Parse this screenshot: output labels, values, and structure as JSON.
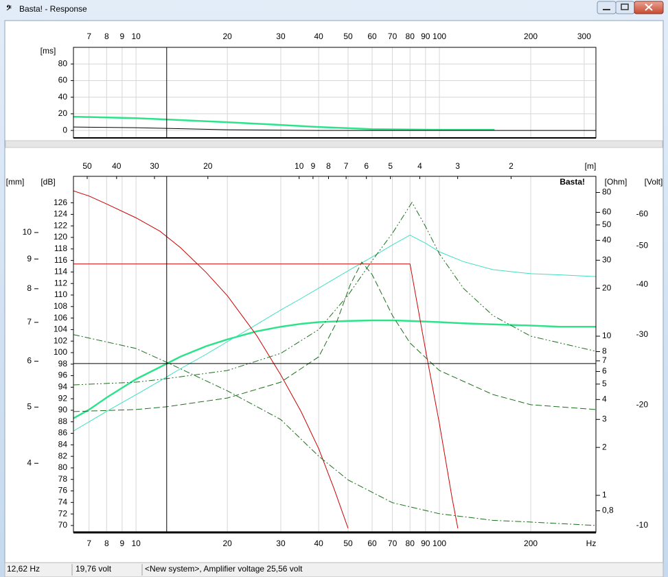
{
  "window": {
    "title": "Basta! - Response"
  },
  "chart_data": [
    {
      "type": "line",
      "xscale": "log",
      "xlim": [
        6.22,
        328
      ],
      "xticks": [
        7,
        8,
        9,
        10,
        20,
        30,
        40,
        50,
        60,
        70,
        80,
        90,
        100,
        200,
        300
      ],
      "xtick_side": "top",
      "ylabel": "[ms]",
      "ylim": [
        -9,
        100
      ],
      "yticks": [
        0,
        20,
        40,
        60,
        80
      ],
      "grid": "both",
      "cursor": {
        "x": 12.62
      },
      "series": [
        {
          "color": "#2de38a",
          "linewidth": 2.5,
          "style": "solid",
          "x": [
            6.22,
            10,
            12.6,
            20,
            30,
            40,
            60,
            100,
            152
          ],
          "values": [
            16.5,
            14.8,
            13.2,
            9.9,
            6.6,
            4.1,
            1.6,
            0.8,
            0.8
          ]
        },
        {
          "color": "#000000",
          "linewidth": 1,
          "style": "solid",
          "x": [
            6.22,
            10,
            12.6,
            20,
            40,
            328
          ],
          "values": [
            4.1,
            3.3,
            2.5,
            0.8,
            0,
            0
          ]
        }
      ]
    },
    {
      "type": "line",
      "xscale": "log",
      "xlim": [
        6.22,
        328
      ],
      "xticks": [
        7,
        8,
        9,
        10,
        20,
        30,
        40,
        50,
        60,
        70,
        80,
        90,
        100,
        200
      ],
      "xtick_side": "bottom",
      "xlabel": "Hz",
      "x2label": "[m]",
      "x2scale": "log",
      "x2lim": [
        55.5,
        1.05
      ],
      "x2ticks": [
        50,
        40,
        30,
        20,
        10,
        9,
        8,
        7,
        6,
        5,
        4,
        3,
        2
      ],
      "ylabel": "[dB]",
      "ylim": [
        68.8,
        130.6
      ],
      "yticks": [
        70,
        72,
        74,
        76,
        78,
        80,
        82,
        84,
        86,
        88,
        90,
        92,
        94,
        96,
        98,
        100,
        102,
        104,
        106,
        108,
        110,
        112,
        114,
        116,
        118,
        120,
        122,
        124,
        126
      ],
      "y2label": "[Ohm]",
      "y2scale": "log",
      "y2lim": [
        0.585,
        101
      ],
      "y2ticks": [
        {
          "value": 0.8,
          "label": "0,8"
        },
        1,
        2,
        3,
        4,
        5,
        6,
        7,
        8,
        10,
        20,
        30,
        40,
        50,
        60,
        80
      ],
      "y3label": "[mm]",
      "y3scale": "log",
      "y3lim": [
        3.04,
        12.5
      ],
      "y3ticks": [
        4,
        5,
        6,
        7,
        8,
        9,
        10
      ],
      "y4label": "[Volt]",
      "y4scale": "log",
      "y4lim": [
        -9.61,
        -74.6
      ],
      "y4ticks": [
        -10,
        -20,
        -30,
        -40,
        -50,
        -60
      ],
      "grid": "x",
      "watermark": "Basta!",
      "cursor": {
        "x": 12.62,
        "y": 98.1
      },
      "series": [
        {
          "color": "#2de38a",
          "linewidth": 2.5,
          "style": "solid",
          "axis": "y",
          "x": [
            6.22,
            7,
            8,
            10,
            12,
            14,
            17,
            20,
            25,
            30,
            35,
            40,
            50,
            60,
            70,
            80,
            100,
            120,
            150,
            200,
            250,
            328
          ],
          "values": [
            88.6,
            90.1,
            92.2,
            95.4,
            97.5,
            99.3,
            101.1,
            102.3,
            103.7,
            104.5,
            105.0,
            105.3,
            105.5,
            105.6,
            105.6,
            105.5,
            105.3,
            105.1,
            104.9,
            104.7,
            104.5,
            104.5
          ]
        },
        {
          "color": "#3ee0c0",
          "linewidth": 1,
          "style": "solid",
          "axis": "y",
          "x": [
            6.22,
            7,
            8,
            10,
            12,
            14,
            17,
            20,
            25,
            30,
            35,
            40,
            50,
            60,
            70,
            80,
            90,
            100,
            120,
            150,
            200,
            250,
            328
          ],
          "values": [
            86.4,
            88.0,
            89.8,
            92.7,
            95.1,
            97.2,
            99.7,
            101.9,
            104.9,
            107.4,
            109.4,
            111.2,
            114.2,
            116.6,
            118.7,
            120.4,
            119.0,
            117.5,
            115.8,
            114.4,
            113.7,
            113.5,
            113.2
          ]
        },
        {
          "color": "#cc0000",
          "linewidth": 1,
          "style": "solid",
          "axis": "y3",
          "x": [
            6.22,
            7,
            8,
            10,
            12,
            14,
            17,
            20,
            25,
            30,
            35,
            40,
            45,
            50
          ],
          "values": [
            11.8,
            11.56,
            11.2,
            10.6,
            10.05,
            9.42,
            8.54,
            7.78,
            6.64,
            5.68,
            4.91,
            4.24,
            3.61,
            3.09
          ]
        },
        {
          "color": "#cc0000",
          "linewidth": 1,
          "style": "solid",
          "axis": "y",
          "x": [
            6.22,
            80,
            90,
            100,
            110,
            115
          ],
          "values": [
            115.4,
            115.4,
            100.5,
            87.7,
            74.9,
            69.5
          ]
        },
        {
          "color": "#1a6e1a",
          "linewidth": 1,
          "style": "dash",
          "axis": "y2",
          "x": [
            6.22,
            10,
            12.6,
            20,
            30,
            40,
            45.8,
            50.8,
            55.5,
            60,
            70,
            80,
            100,
            150,
            200,
            328
          ],
          "values": [
            3.36,
            3.46,
            3.6,
            4.09,
            5.14,
            7.42,
            12.2,
            21.0,
            29.2,
            24.4,
            13.5,
            9.06,
            6.09,
            4.3,
            3.71,
            3.46
          ]
        },
        {
          "color": "#1a6e1a",
          "linewidth": 1,
          "style": "dash-dot-dot",
          "axis": "y2",
          "x": [
            6.22,
            10,
            12.6,
            20,
            30,
            40,
            50,
            60,
            70,
            81.2,
            90,
            100,
            120,
            150,
            200,
            328
          ],
          "values": [
            4.94,
            5.14,
            5.41,
            6.09,
            7.8,
            11.0,
            18.1,
            29.8,
            44.3,
            69.3,
            48.9,
            32.9,
            20.0,
            13.5,
            10.0,
            8.04
          ]
        },
        {
          "color": "#1a6e1a",
          "linewidth": 1,
          "style": "dash-dot",
          "axis": "y4",
          "x": [
            6.22,
            10,
            12.6,
            20,
            30,
            40,
            50,
            70,
            100,
            150,
            200,
            328
          ],
          "values": [
            -30.0,
            -27.7,
            -25.6,
            -21.7,
            -18.4,
            -14.9,
            -13.0,
            -11.4,
            -10.7,
            -10.3,
            -10.2,
            -10.0
          ]
        }
      ]
    }
  ],
  "status_bar": [
    "12,62 Hz",
    "19,76 volt",
    "<New system>, Amplifier voltage 25,56 volt"
  ]
}
